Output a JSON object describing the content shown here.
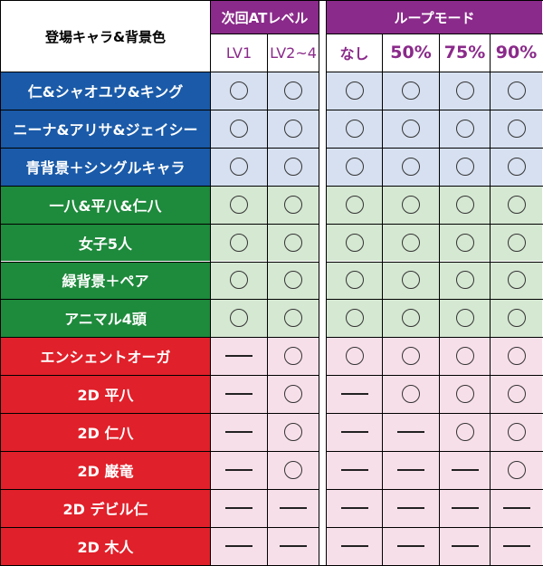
{
  "header": {
    "title": "登場キャラ&背景色",
    "at_group": "次回ATレベル",
    "loop_group": "ループモード",
    "at_cols": [
      "LV1",
      "LV2~4"
    ],
    "loop_cols": [
      "なし",
      "50%",
      "75%",
      "90%"
    ]
  },
  "colors": {
    "purple": "#8a2a8a",
    "blue": "#1a5aa8",
    "green": "#1e8a3c",
    "red": "#e0202a"
  },
  "rows": [
    {
      "label": "仁&シャオユウ&キング",
      "group": "blue",
      "marks": [
        "o",
        "o",
        "o",
        "o",
        "o",
        "o"
      ]
    },
    {
      "label": "ニーナ&アリサ&ジェイシー",
      "group": "blue",
      "marks": [
        "o",
        "o",
        "o",
        "o",
        "o",
        "o"
      ]
    },
    {
      "label": "青背景＋シングルキャラ",
      "group": "blue",
      "marks": [
        "o",
        "o",
        "o",
        "o",
        "o",
        "o"
      ]
    },
    {
      "label": "一八&平八&仁八",
      "group": "green",
      "marks": [
        "o",
        "o",
        "o",
        "o",
        "o",
        "o"
      ]
    },
    {
      "label": "女子5人",
      "group": "green",
      "marks": [
        "o",
        "o",
        "o",
        "o",
        "o",
        "o"
      ]
    },
    {
      "label": "緑背景＋ペア",
      "group": "green",
      "marks": [
        "o",
        "o",
        "o",
        "o",
        "o",
        "o"
      ]
    },
    {
      "label": "アニマル4頭",
      "group": "green",
      "marks": [
        "o",
        "o",
        "o",
        "o",
        "o",
        "o"
      ]
    },
    {
      "label": "エンシェントオーガ",
      "group": "red",
      "marks": [
        "-",
        "o",
        "o",
        "o",
        "o",
        "o"
      ]
    },
    {
      "label": "2D 平八",
      "group": "red",
      "marks": [
        "-",
        "o",
        "-",
        "o",
        "o",
        "o"
      ]
    },
    {
      "label": "2D 仁八",
      "group": "red",
      "marks": [
        "-",
        "o",
        "-",
        "-",
        "o",
        "o"
      ]
    },
    {
      "label": "2D 巌竜",
      "group": "red",
      "marks": [
        "-",
        "o",
        "-",
        "-",
        "-",
        "o"
      ]
    },
    {
      "label": "2D デビル仁",
      "group": "red",
      "marks": [
        "-",
        "-",
        "-",
        "-",
        "-",
        "-"
      ]
    },
    {
      "label": "2D 木人",
      "group": "red",
      "marks": [
        "-",
        "-",
        "-",
        "-",
        "-",
        "-"
      ]
    }
  ]
}
